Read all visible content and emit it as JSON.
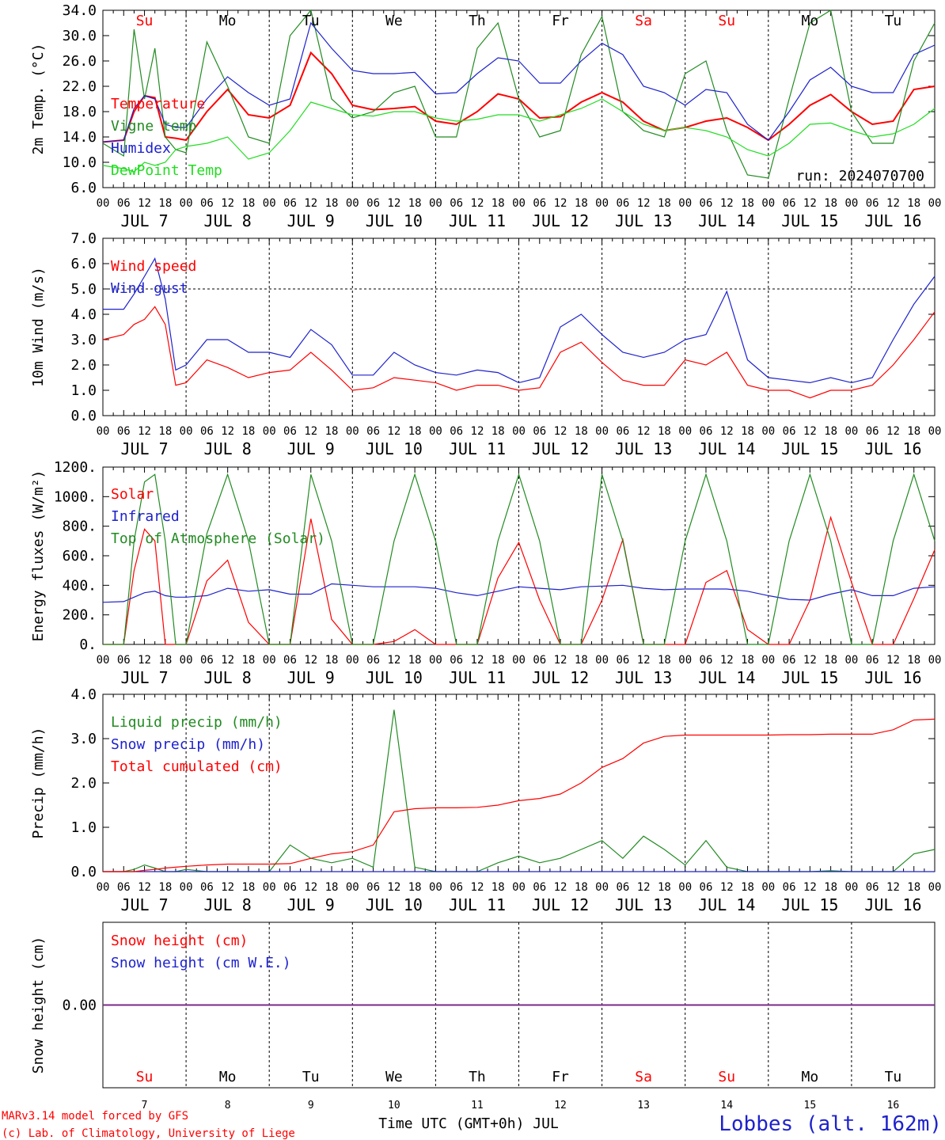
{
  "chart_data": [
    {
      "type": "line",
      "ylabel": "2m Temp. (°C)",
      "ylim": [
        6.0,
        34.0
      ],
      "yticks": [
        "6.0",
        "10.0",
        "14.0",
        "18.0",
        "22.0",
        "26.0",
        "30.0",
        "34.0"
      ],
      "annotation": "run: 2024070700",
      "x_hours": [
        0,
        6,
        9,
        12,
        15,
        18,
        21,
        24,
        30,
        36,
        42,
        48,
        54,
        60,
        66,
        72,
        78,
        84,
        90,
        96,
        102,
        108,
        114,
        120,
        126,
        132,
        138,
        144,
        150,
        156,
        162,
        168,
        174,
        180,
        186,
        192,
        198,
        204,
        210,
        216,
        222,
        228,
        234,
        240
      ],
      "series": [
        {
          "name": "Temperature",
          "color": "#ff0000",
          "values": [
            13.2,
            13.5,
            18,
            20.5,
            20.2,
            14,
            13.8,
            13.5,
            18,
            21.5,
            17.5,
            17,
            19,
            27.3,
            24,
            19,
            18.3,
            18.5,
            18.8,
            16.5,
            16,
            18,
            20.8,
            20,
            17,
            17.2,
            19.5,
            21,
            19.5,
            16.5,
            15,
            15.5,
            16.5,
            17,
            15.5,
            13.5,
            16,
            19,
            20.7,
            18,
            16,
            16.5,
            21.5,
            22
          ]
        },
        {
          "name": "Vigne temp",
          "color": "#228b22",
          "values": [
            13,
            11,
            31,
            20,
            28,
            14,
            12,
            11.5,
            29,
            22,
            14,
            13,
            30,
            34,
            20,
            17,
            18,
            21,
            22,
            14,
            14,
            28,
            32,
            20,
            14,
            15,
            27,
            33,
            18,
            15,
            14,
            24,
            26,
            15,
            8,
            7.5,
            20,
            32,
            34,
            18,
            13,
            13,
            26,
            32
          ]
        },
        {
          "name": "Humidex",
          "color": "#1e22cc",
          "values": [
            13.2,
            13.5,
            18.5,
            20.5,
            20,
            16,
            15.5,
            15.5,
            20,
            23.5,
            21,
            19,
            20,
            32,
            28,
            24.5,
            24,
            24,
            24.2,
            20.8,
            21,
            24,
            26.5,
            26,
            22.5,
            22.5,
            26,
            28.8,
            27,
            22,
            21,
            19,
            21.5,
            21,
            16,
            13.5,
            18,
            23,
            25,
            22,
            21,
            21,
            27,
            28.5
          ]
        },
        {
          "name": "DewPoint Temp",
          "color": "#22dd22",
          "values": [
            9.5,
            9,
            8.5,
            10,
            9.5,
            10,
            12,
            12.5,
            13,
            14,
            10.5,
            11.5,
            15,
            19.5,
            18.5,
            17.5,
            17.3,
            18,
            18,
            17,
            16.5,
            16.8,
            17.5,
            17.5,
            16.5,
            17.5,
            18.5,
            20,
            18,
            16,
            15,
            15.5,
            15,
            14,
            12,
            11,
            13,
            16,
            16.2,
            15,
            14,
            14.5,
            16,
            18.5
          ]
        }
      ],
      "day_labels": [
        {
          "label": "Su",
          "color": "#ff0000"
        },
        {
          "label": "Mo",
          "color": "#000000"
        },
        {
          "label": "Tu",
          "color": "#000000"
        },
        {
          "label": "We",
          "color": "#000000"
        },
        {
          "label": "Th",
          "color": "#000000"
        },
        {
          "label": "Fr",
          "color": "#000000"
        },
        {
          "label": "Sa",
          "color": "#ff0000"
        },
        {
          "label": "Su",
          "color": "#ff0000"
        },
        {
          "label": "Mo",
          "color": "#000000"
        },
        {
          "label": "Tu",
          "color": "#000000"
        }
      ]
    },
    {
      "type": "line",
      "ylabel": "10m Wind (m/s)",
      "ylim": [
        0.0,
        7.0
      ],
      "yticks": [
        "0.0",
        "1.0",
        "2.0",
        "3.0",
        "4.0",
        "5.0",
        "6.0",
        "7.0"
      ],
      "reference_line": 5.0,
      "x_hours": [
        0,
        6,
        9,
        12,
        15,
        18,
        21,
        24,
        30,
        36,
        42,
        48,
        54,
        60,
        66,
        72,
        78,
        84,
        90,
        96,
        102,
        108,
        114,
        120,
        126,
        132,
        138,
        144,
        150,
        156,
        162,
        168,
        174,
        180,
        186,
        192,
        198,
        204,
        210,
        216,
        222,
        228,
        234,
        240
      ],
      "series": [
        {
          "name": "Wind speed",
          "color": "#ff0000",
          "values": [
            3.0,
            3.2,
            3.6,
            3.8,
            4.3,
            3.6,
            1.2,
            1.3,
            2.2,
            1.9,
            1.5,
            1.7,
            1.8,
            2.5,
            1.8,
            1.0,
            1.1,
            1.5,
            1.4,
            1.3,
            1.0,
            1.2,
            1.2,
            1.0,
            1.1,
            2.5,
            2.9,
            2.1,
            1.4,
            1.2,
            1.2,
            2.2,
            2.0,
            2.5,
            1.2,
            1.0,
            1.0,
            0.7,
            1.0,
            1.0,
            1.2,
            2.0,
            3.0,
            4.1
          ]
        },
        {
          "name": "Wind gust",
          "color": "#1e22cc",
          "values": [
            4.2,
            4.2,
            4.8,
            5.5,
            6.2,
            4.6,
            1.8,
            2.0,
            3.0,
            3.0,
            2.5,
            2.5,
            2.3,
            3.4,
            2.8,
            1.6,
            1.6,
            2.5,
            2.0,
            1.7,
            1.6,
            1.8,
            1.7,
            1.3,
            1.5,
            3.5,
            4.0,
            3.2,
            2.5,
            2.3,
            2.5,
            3.0,
            3.2,
            4.9,
            2.2,
            1.5,
            1.4,
            1.3,
            1.5,
            1.3,
            1.5,
            3.0,
            4.4,
            5.5
          ]
        }
      ]
    },
    {
      "type": "line",
      "ylabel": "Energy fluxes (W/m²)",
      "ylim": [
        0,
        1200
      ],
      "yticks": [
        "0.",
        "200.",
        "400.",
        "600.",
        "800.",
        "1000.",
        "1200."
      ],
      "x_hours": [
        0,
        6,
        9,
        12,
        15,
        18,
        21,
        24,
        30,
        36,
        42,
        48,
        54,
        60,
        66,
        72,
        78,
        84,
        90,
        96,
        102,
        108,
        114,
        120,
        126,
        132,
        138,
        144,
        150,
        156,
        162,
        168,
        174,
        180,
        186,
        192,
        198,
        204,
        210,
        216,
        222,
        228,
        234,
        240
      ],
      "series": [
        {
          "name": "Solar",
          "color": "#ff0000",
          "values": [
            0,
            0,
            500,
            780,
            700,
            0,
            0,
            0,
            430,
            570,
            150,
            0,
            0,
            850,
            170,
            0,
            0,
            20,
            100,
            0,
            0,
            0,
            450,
            690,
            300,
            0,
            0,
            300,
            710,
            0,
            0,
            0,
            420,
            500,
            100,
            0,
            0,
            300,
            860,
            420,
            0,
            0,
            310,
            640
          ]
        },
        {
          "name": "Infrared",
          "color": "#1e22cc",
          "values": [
            285,
            290,
            320,
            350,
            360,
            330,
            320,
            320,
            330,
            380,
            360,
            370,
            340,
            340,
            410,
            400,
            390,
            390,
            390,
            380,
            350,
            330,
            360,
            390,
            380,
            370,
            390,
            395,
            400,
            380,
            370,
            375,
            375,
            375,
            360,
            330,
            305,
            300,
            340,
            370,
            330,
            330,
            380,
            390
          ]
        },
        {
          "name": "Top of Atmosphere (Solar)",
          "color": "#228b22",
          "values": [
            0,
            0,
            700,
            1100,
            1150,
            700,
            0,
            0,
            750,
            1150,
            700,
            0,
            0,
            1150,
            700,
            0,
            0,
            700,
            1150,
            700,
            0,
            0,
            700,
            1150,
            700,
            0,
            0,
            1150,
            700,
            0,
            0,
            700,
            1150,
            700,
            0,
            0,
            700,
            1150,
            700,
            0,
            0,
            700,
            1150,
            700
          ]
        }
      ]
    },
    {
      "type": "line",
      "ylabel": "Precip (mm/h)",
      "ylim": [
        0.0,
        4.0
      ],
      "yticks": [
        "0.0",
        "1.0",
        "2.0",
        "3.0",
        "4.0"
      ],
      "x_hours": [
        0,
        6,
        9,
        12,
        15,
        18,
        21,
        24,
        30,
        36,
        42,
        48,
        54,
        60,
        66,
        72,
        78,
        84,
        90,
        96,
        102,
        108,
        114,
        120,
        126,
        132,
        138,
        144,
        150,
        156,
        162,
        168,
        174,
        180,
        186,
        192,
        198,
        204,
        210,
        216,
        222,
        228,
        234,
        240
      ],
      "series": [
        {
          "name": "Liquid precip (mm/h)",
          "color": "#228b22",
          "values": [
            0,
            0,
            0.05,
            0.15,
            0.08,
            0,
            0,
            0.05,
            0,
            0,
            0,
            0,
            0.6,
            0.3,
            0.2,
            0.3,
            0.1,
            3.65,
            0.1,
            0,
            0,
            0,
            0.2,
            0.35,
            0.2,
            0.3,
            0.5,
            0.7,
            0.3,
            0.8,
            0.5,
            0.15,
            0.7,
            0.1,
            0,
            0,
            0,
            0,
            0.02,
            0,
            0,
            0,
            0.4,
            0.5
          ]
        },
        {
          "name": "Snow precip (mm/h)",
          "color": "#1e22cc",
          "values": [
            0,
            0,
            0,
            0,
            0,
            0,
            0,
            0,
            0,
            0,
            0,
            0,
            0,
            0,
            0,
            0,
            0,
            0,
            0,
            0,
            0,
            0,
            0,
            0,
            0,
            0,
            0,
            0,
            0,
            0,
            0,
            0,
            0,
            0,
            0,
            0,
            0,
            0,
            0,
            0,
            0,
            0,
            0,
            0
          ]
        },
        {
          "name": "Total cumulated (cm)",
          "color": "#ff0000",
          "values": [
            0,
            0,
            0,
            0.03,
            0.05,
            0.08,
            0.1,
            0.12,
            0.15,
            0.17,
            0.17,
            0.17,
            0.18,
            0.3,
            0.4,
            0.45,
            0.6,
            1.35,
            1.42,
            1.44,
            1.44,
            1.45,
            1.5,
            1.6,
            1.65,
            1.75,
            2.0,
            2.35,
            2.55,
            2.9,
            3.05,
            3.08,
            3.08,
            3.08,
            3.08,
            3.08,
            3.09,
            3.09,
            3.1,
            3.1,
            3.1,
            3.2,
            3.42,
            3.44
          ]
        }
      ]
    },
    {
      "type": "line",
      "ylabel": "Snow height (cm)",
      "yticks": [
        "0.00"
      ],
      "series": [
        {
          "name": "Snow height (cm)",
          "color": "#ff0000",
          "values": [
            0,
            0
          ]
        },
        {
          "name": "Snow height (cm W.E.)",
          "color": "#1e22cc",
          "values": [
            0,
            0
          ]
        }
      ],
      "day_labels": [
        {
          "label": "Su",
          "color": "#ff0000"
        },
        {
          "label": "Mo",
          "color": "#000000"
        },
        {
          "label": "Tu",
          "color": "#000000"
        },
        {
          "label": "We",
          "color": "#000000"
        },
        {
          "label": "Th",
          "color": "#000000"
        },
        {
          "label": "Fr",
          "color": "#000000"
        },
        {
          "label": "Sa",
          "color": "#ff0000"
        },
        {
          "label": "Su",
          "color": "#ff0000"
        },
        {
          "label": "Mo",
          "color": "#000000"
        },
        {
          "label": "Tu",
          "color": "#000000"
        }
      ],
      "day_numbers": [
        "7",
        "8",
        "9",
        "10",
        "11",
        "12",
        "13",
        "14",
        "15",
        "16"
      ]
    }
  ],
  "hour_ticks": [
    "00",
    "06",
    "12",
    "18"
  ],
  "date_labels": [
    "JUL  7",
    "JUL  8",
    "JUL  9",
    "JUL 10",
    "JUL 11",
    "JUL 12",
    "JUL 13",
    "JUL 14",
    "JUL 15",
    "JUL 16"
  ],
  "xlabel": "Time UTC (GMT+0h) JUL",
  "credit_line1": "MARv3.14 model forced by GFS",
  "credit_line2": "(c) Lab. of Climatology, University of Liege",
  "location": "Lobbes (alt. 162m)"
}
